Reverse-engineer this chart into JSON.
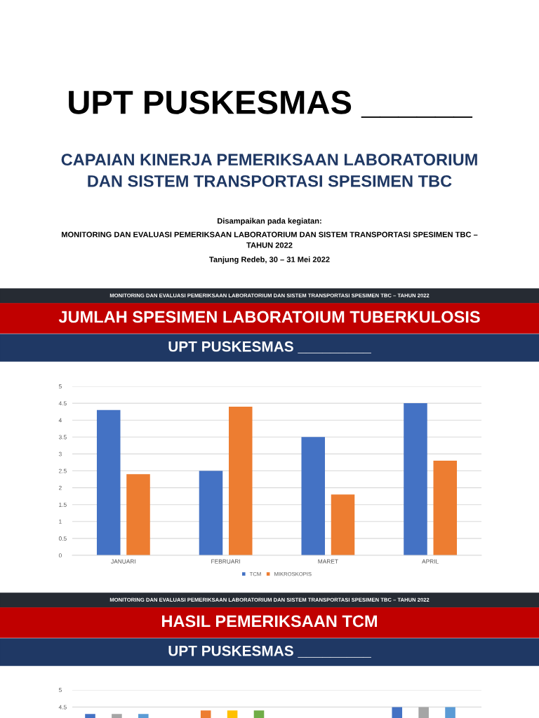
{
  "chart_data": [
    {
      "type": "other",
      "title": "UPT PUSKESMAS ______",
      "subtitle": "CAPAIAN KINERJA PEMERIKSAAN LABORATORIUM\nDAN SISTEM TRANSPORTASI SPESIMEN TBC",
      "annotations": [
        "Disampaikan pada kegiatan:",
        "MONITORING DAN EVALUASI PEMERIKSAAN LABORATORIUM DAN SISTEM TRANSPORTASI SPESIMEN TBC –\nTAHUN 2022",
        "Tanjung Redeb, 30 – 31 Mei 2022"
      ]
    },
    {
      "type": "bar",
      "title": "JUMLAH SPESIMEN LABORATOIUM TUBERKULOSIS",
      "subtitle": "UPT PUSKESMAS _________",
      "annotations": [
        "MONITORING DAN EVALUASI PEMERIKSAAN LABORATORIUM DAN SISTEM TRANSPORTASI SPESIMEN TBC – TAHUN 2022"
      ],
      "categories": [
        "JANUARI",
        "FEBRUARI",
        "MARET",
        "APRIL"
      ],
      "series": [
        {
          "name": "TCM",
          "color": "#4472c4",
          "values": [
            4.3,
            2.5,
            3.5,
            4.5
          ]
        },
        {
          "name": "MIKROSKOPIS",
          "color": "#ed7d31",
          "values": [
            2.4,
            4.4,
            1.8,
            2.8
          ]
        }
      ],
      "ylim": [
        0,
        5
      ],
      "yticks": [
        0,
        0.5,
        1,
        1.5,
        2,
        2.5,
        3,
        3.5,
        4,
        4.5,
        5
      ],
      "grid": "y",
      "legend": "bottom"
    },
    {
      "type": "bar",
      "title": "HASIL PEMERIKSAAN TCM",
      "subtitle": "UPT PUSKESMAS _________",
      "annotations": [
        "MONITORING DAN EVALUASI PEMERIKSAAN LABORATORIUM DAN SISTEM TRANSPORTASI SPESIMEN TBC – TAHUN 2022"
      ],
      "categories": [
        null,
        null,
        null,
        null
      ],
      "series": [
        {
          "color": "#4472c4",
          "values": [
            4.3,
            null,
            null,
            4.5
          ]
        },
        {
          "color": "#ed7d31",
          "values": [
            null,
            4.4,
            null,
            null
          ]
        },
        {
          "color": "#a5a5a5",
          "values": [
            4.3,
            null,
            null,
            4.5
          ]
        },
        {
          "color": "#ffc000",
          "values": [
            null,
            4.4,
            null,
            null
          ]
        },
        {
          "color": "#5b9bd5",
          "values": [
            4.3,
            null,
            null,
            4.5
          ]
        },
        {
          "color": "#70ad47",
          "values": [
            null,
            4.4,
            null,
            null
          ]
        }
      ],
      "ylim": [
        0,
        5
      ],
      "yticks": [
        4.5,
        5
      ],
      "grid": "y"
    }
  ]
}
